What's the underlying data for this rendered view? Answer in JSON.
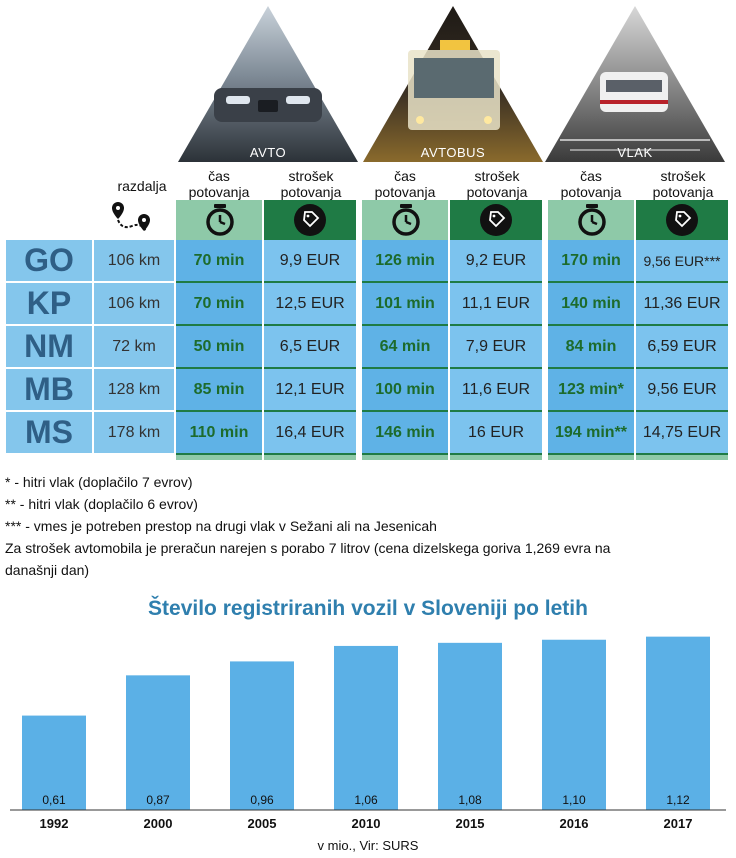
{
  "modes": [
    {
      "key": "avto",
      "label": "AVTO"
    },
    {
      "key": "avtobus",
      "label": "AVTOBUS"
    },
    {
      "key": "vlak",
      "label": "VLAK"
    }
  ],
  "headers": {
    "distance": "razdalja",
    "time": "čas potovanja",
    "cost": "strošek potovanja"
  },
  "rows": [
    {
      "city": "GO",
      "distance": "106 km",
      "avto_time": "70 min",
      "avto_cost": "9,9 EUR",
      "bus_time": "126 min",
      "bus_cost": "9,2 EUR",
      "train_time": "170 min",
      "train_cost": "9,56 EUR***"
    },
    {
      "city": "KP",
      "distance": "106 km",
      "avto_time": "70 min",
      "avto_cost": "12,5 EUR",
      "bus_time": "101 min",
      "bus_cost": "11,1 EUR",
      "train_time": "140 min",
      "train_cost": "11,36 EUR"
    },
    {
      "city": "NM",
      "distance": "72 km",
      "avto_time": "50 min",
      "avto_cost": "6,5 EUR",
      "bus_time": "64 min",
      "bus_cost": "7,9 EUR",
      "train_time": "84 min",
      "train_cost": "6,59 EUR"
    },
    {
      "city": "MB",
      "distance": "128 km",
      "avto_time": "85 min",
      "avto_cost": "12,1 EUR",
      "bus_time": "100 min",
      "bus_cost": "11,6 EUR",
      "train_time": "123 min*",
      "train_cost": "9,56 EUR"
    },
    {
      "city": "MS",
      "distance": "178 km",
      "avto_time": "110 min",
      "avto_cost": "16,4 EUR",
      "bus_time": "146 min",
      "bus_cost": "16 EUR",
      "train_time": "194 min**",
      "train_cost": "14,75 EUR"
    }
  ],
  "notes": [
    "* - hitri vlak (doplačilo 7 evrov)",
    "** - hitri vlak (doplačilo 6 evrov)",
    "*** - vmes je potreben prestop na drugi vlak v Sežani ali na Jesenicah",
    "Za strošek avtomobila je preračun narejen s porabo 7 litrov (cena dizelskega goriva 1,269 evra na",
    "današnji dan)"
  ],
  "colors": {
    "city_bg": "#84c6ec",
    "time_bg": "#5fb2e6",
    "cost_bg": "#7cc3ee",
    "header_light": "#8ec9a8",
    "header_dark": "#1f7b45",
    "bar": "#5bb0e6",
    "title": "#2f7fae"
  },
  "chart_data": {
    "type": "bar",
    "title": "Število registriranih vozil v Sloveniji po letih",
    "categories": [
      "1992",
      "2000",
      "2005",
      "2010",
      "2015",
      "2016",
      "2017"
    ],
    "values": [
      0.61,
      0.87,
      0.96,
      1.06,
      1.08,
      1.1,
      1.12
    ],
    "value_labels": [
      "0,61",
      "0,87",
      "0,96",
      "1,06",
      "1,08",
      "1,10",
      "1,12"
    ],
    "ylim": [
      0,
      1.15
    ],
    "grid": false,
    "source": "v mio., Vir: SURS"
  }
}
